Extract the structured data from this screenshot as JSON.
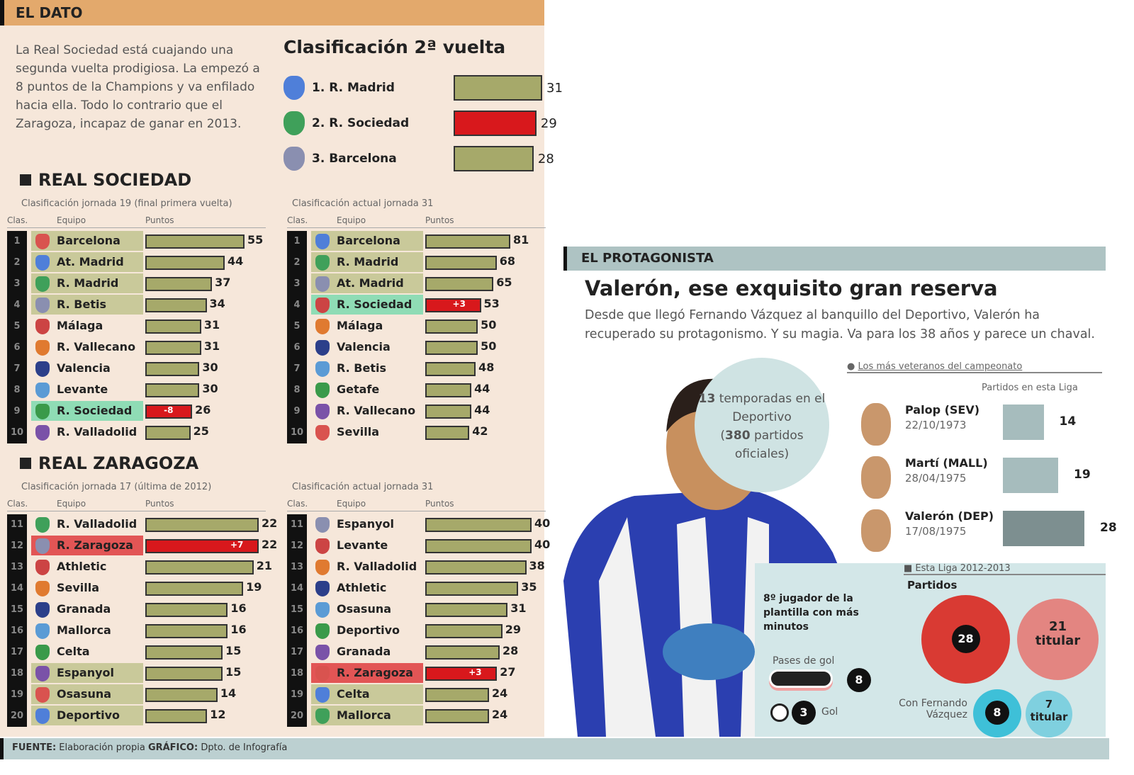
{
  "dato": {
    "header": "EL DATO",
    "intro": "La Real Sociedad está cuajando una segunda vuelta prodigiosa. La empezó a 8 puntos de la Champions y va enfilado hacia ella. Todo lo contrario que el Zaragoza, incapaz de ganar en 2013."
  },
  "colors": {
    "bar": "#a6a96a",
    "highlight": "#d8181c",
    "rs_band": "#7fd3a8",
    "zar_band": "#f2a9a9",
    "zone": "#c9c99a"
  },
  "chart_data": [
    {
      "type": "bar",
      "title": "Clasificación 2ª vuelta",
      "categories": [
        "1. R. Madrid",
        "2. R. Sociedad",
        "3. Barcelona"
      ],
      "values": [
        31,
        29,
        28
      ],
      "highlight": "2. R. Sociedad"
    },
    {
      "type": "bar",
      "section": "REAL SOCIEDAD",
      "title": "Clasificación jornada 19 (final primera vuelta)",
      "headers": [
        "Clas.",
        "Equipo",
        "Puntos"
      ],
      "positions": [
        1,
        2,
        3,
        4,
        5,
        6,
        7,
        8,
        9,
        10
      ],
      "categories": [
        "Barcelona",
        "At. Madrid",
        "R. Madrid",
        "R. Betis",
        "Málaga",
        "R. Vallecano",
        "Valencia",
        "Levante",
        "R. Sociedad",
        "R. Valladolid"
      ],
      "values": [
        55,
        44,
        37,
        34,
        31,
        31,
        30,
        30,
        26,
        25
      ],
      "highlight": "R. Sociedad",
      "diff": "-8"
    },
    {
      "type": "bar",
      "title": "Clasificación actual jornada 31",
      "headers": [
        "Clas.",
        "Equipo",
        "Puntos"
      ],
      "positions": [
        1,
        2,
        3,
        4,
        5,
        6,
        7,
        8,
        9,
        10
      ],
      "categories": [
        "Barcelona",
        "R. Madrid",
        "At. Madrid",
        "R. Sociedad",
        "Málaga",
        "Valencia",
        "R. Betis",
        "Getafe",
        "R. Vallecano",
        "Sevilla"
      ],
      "values": [
        81,
        68,
        65,
        53,
        50,
        50,
        48,
        44,
        44,
        42
      ],
      "highlight": "R. Sociedad",
      "diff": "+3"
    },
    {
      "type": "bar",
      "section": "REAL ZARAGOZA",
      "title": "Clasificación jornada 17 (última de 2012)",
      "headers": [
        "Clas.",
        "Equipo",
        "Puntos"
      ],
      "positions": [
        11,
        12,
        13,
        14,
        15,
        16,
        17,
        18,
        19,
        20
      ],
      "categories": [
        "R. Valladolid",
        "R. Zaragoza",
        "Athletic",
        "Sevilla",
        "Granada",
        "Mallorca",
        "Celta",
        "Espanyol",
        "Osasuna",
        "Deportivo"
      ],
      "values": [
        22,
        22,
        21,
        19,
        16,
        16,
        15,
        15,
        14,
        12
      ],
      "highlight": "R. Zaragoza",
      "diff": "+7"
    },
    {
      "type": "bar",
      "title": "Clasificación actual jornada 31",
      "headers": [
        "Clas.",
        "Equipo",
        "Puntos"
      ],
      "positions": [
        11,
        12,
        13,
        14,
        15,
        16,
        17,
        18,
        19,
        20
      ],
      "categories": [
        "Espanyol",
        "Levante",
        "R. Valladolid",
        "Athletic",
        "Osasuna",
        "Deportivo",
        "Granada",
        "R. Zaragoza",
        "Celta",
        "Mallorca"
      ],
      "values": [
        40,
        40,
        38,
        35,
        31,
        29,
        28,
        27,
        24,
        24
      ],
      "highlight": "R. Zaragoza",
      "diff": "+3"
    },
    {
      "type": "bar",
      "title": "Los más veteranos del campeonato",
      "subtitle": "Partidos en esta Liga",
      "categories": [
        "Palop (SEV)",
        "Martí (MALL)",
        "Valerón (DEP)"
      ],
      "dates": [
        "22/10/1973",
        "28/04/1975",
        "17/08/1975"
      ],
      "values": [
        14,
        19,
        28
      ]
    }
  ],
  "protagonista": {
    "header": "EL PROTAGONISTA",
    "title": "Valerón, ese exquisito gran reserva",
    "text": "Desde que llegó Fernando Vázquez al banquillo del Deportivo, Valerón ha recuperado su protagonismo. Y su magia. Va para los 38 años y parece un chaval.",
    "bubble": {
      "seasons": "13",
      "seasons_label": "temporadas en el Deportivo",
      "matches": "380",
      "matches_label": "partidos oficiales"
    }
  },
  "stats": {
    "header": "Esta Liga 2012-2013",
    "partidos_label": "Partidos",
    "partidos": "28",
    "titular": "21",
    "titular_label": "titular",
    "rank_text": "8º jugador de la plantilla con más minutos",
    "pases_label": "Pases de gol",
    "pases": "8",
    "goles": "3",
    "goles_label": "Gol",
    "con_fv_label": "Con Fernando Vázquez",
    "con_fv": "8",
    "con_fv_titular": "7"
  },
  "footer": {
    "fuente_label": "FUENTE:",
    "fuente": "Elaboración propia",
    "grafico_label": "GRÁFICO:",
    "grafico": "Dpto. de Infografía"
  }
}
